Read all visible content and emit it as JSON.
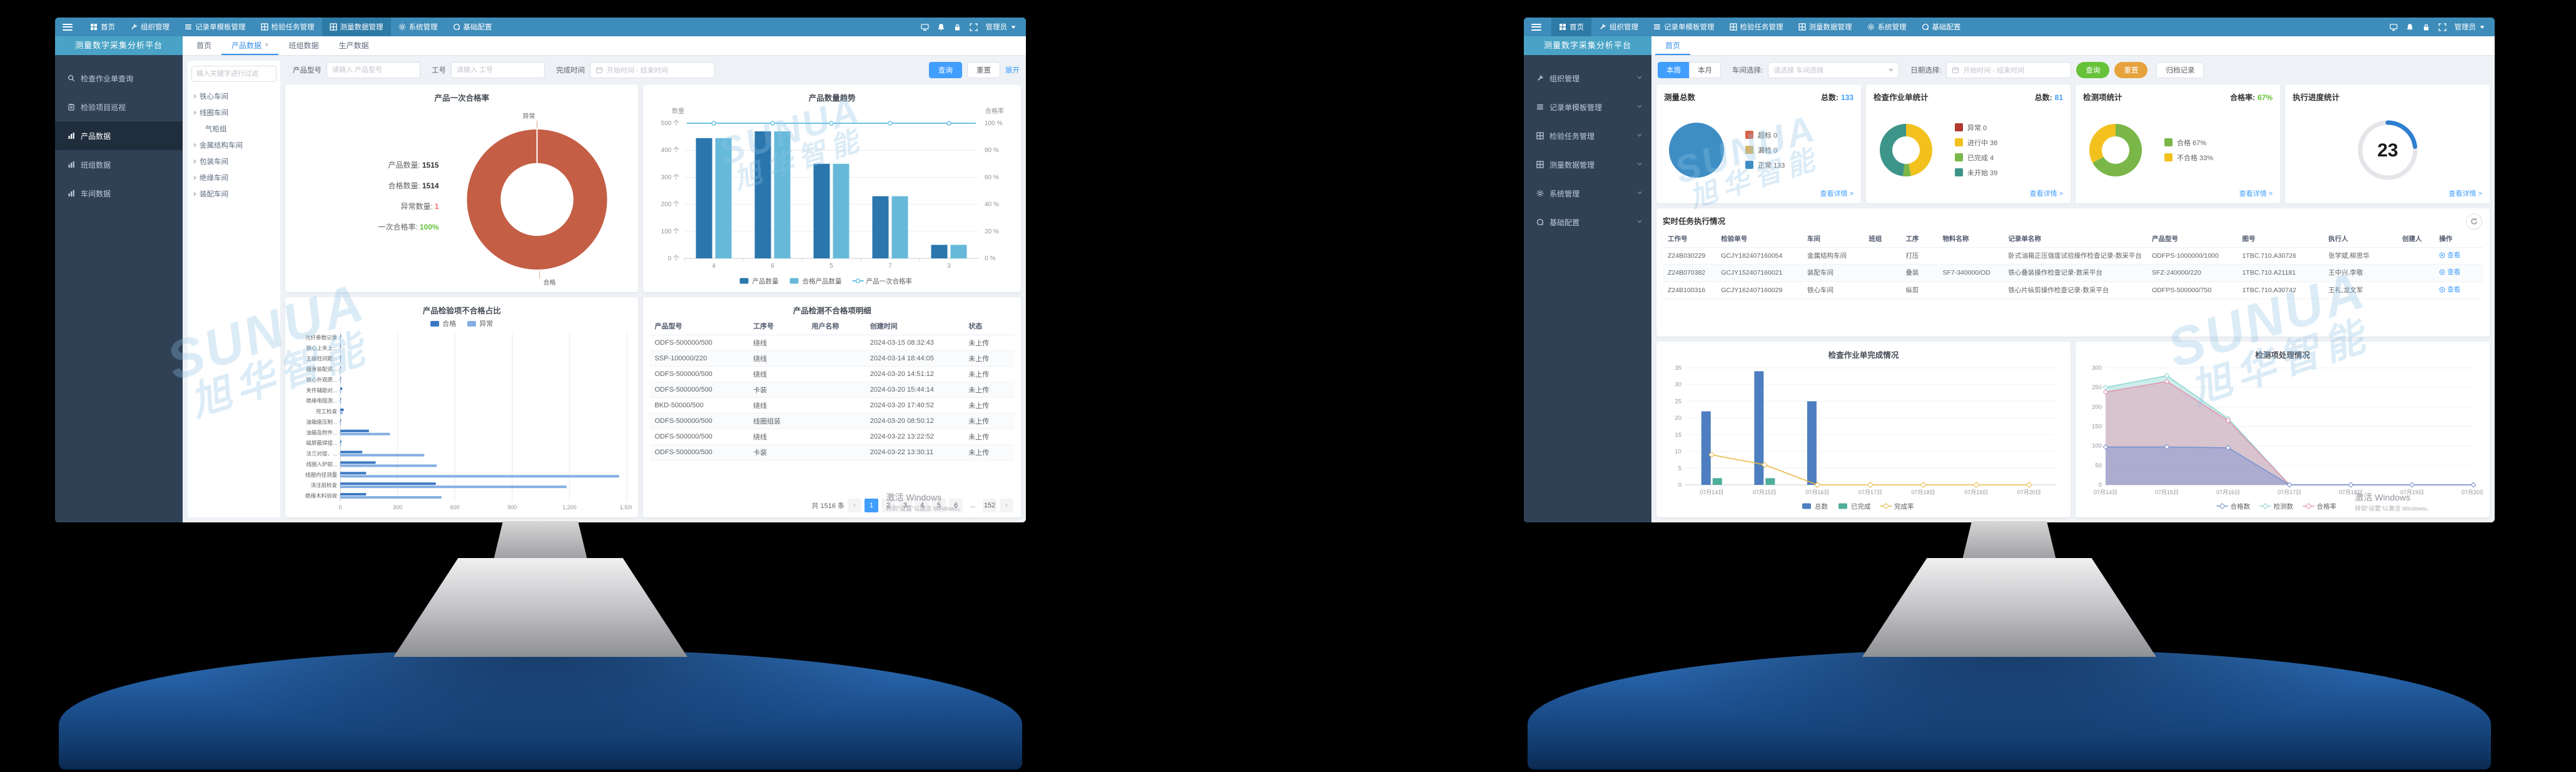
{
  "platform_title": "测量数字采集分析平台",
  "topnav": {
    "items": [
      {
        "icon": "home-icon",
        "label": "首页"
      },
      {
        "icon": "wrench-icon",
        "label": "组织管理"
      },
      {
        "icon": "list-icon",
        "label": "记录单模板管理"
      },
      {
        "icon": "grid-icon",
        "label": "检验任务管理"
      },
      {
        "icon": "grid-icon",
        "label": "测量数据管理"
      },
      {
        "icon": "gear-icon",
        "label": "系统管理"
      },
      {
        "icon": "config-icon",
        "label": "基础配置"
      }
    ],
    "right_icons": [
      "display-icon",
      "bell-icon",
      "lock-icon",
      "fullscreen-icon"
    ],
    "user": "管理员"
  },
  "watermark": {
    "brand": "SUNUA",
    "brand_cn": "旭华智能",
    "activate": "激活 Windows",
    "activate_sub": "转到“设置”以激活 Windows。"
  },
  "monitor1": {
    "nav_active": 4,
    "sidebar": [
      {
        "icon": "search-icon",
        "label": "检查作业单查询"
      },
      {
        "icon": "clipboard-icon",
        "label": "检验项目巡视"
      },
      {
        "icon": "chart-icon",
        "label": "产品数据",
        "active": true
      },
      {
        "icon": "chart-icon",
        "label": "班组数据"
      },
      {
        "icon": "chart-icon",
        "label": "车间数据"
      }
    ],
    "tabs": [
      {
        "label": "首页"
      },
      {
        "label": "产品数据",
        "active": true,
        "closable": true
      },
      {
        "label": "班组数据"
      },
      {
        "label": "生产数据"
      }
    ],
    "tree": {
      "filter_placeholder": "输入关键字进行过滤",
      "items": [
        {
          "label": "铁心车间",
          "caret": true
        },
        {
          "label": "线圈车间",
          "caret": true
        },
        {
          "label": "气柜组",
          "caret": false,
          "child": true
        },
        {
          "label": "金属结构车间",
          "caret": true
        },
        {
          "label": "包装车间",
          "caret": true
        },
        {
          "label": "绝缘车间",
          "caret": true
        },
        {
          "label": "装配车间",
          "caret": true
        }
      ]
    },
    "filters": {
      "f1_label": "产品型号",
      "f1_placeholder": "请输入 产品型号",
      "f2_label": "工号",
      "f2_placeholder": "请输入 工号",
      "f3_label": "完成时间",
      "f3_placeholder": "开始时间 - 结束时间",
      "search": "查询",
      "reset": "重置",
      "expand": "展开"
    },
    "summary": {
      "title": "产品一次合格率",
      "rows": [
        {
          "label": "产品数量:",
          "value": "1515",
          "color": "#303133"
        },
        {
          "label": "合格数量:",
          "value": "1514",
          "color": "#303133"
        },
        {
          "label": "异常数量:",
          "value": "1",
          "color": "#f56c6c"
        },
        {
          "label": "一次合格率:",
          "value": "100%",
          "color": "#67c23a"
        }
      ]
    },
    "chart_pass": {
      "type": "donut",
      "labels": [
        "异常",
        "合格"
      ],
      "values": [
        1,
        1514
      ],
      "color": "#c45e45"
    },
    "chart_trend": {
      "type": "bar+line",
      "title": "产品数量趋势",
      "y_label": "数量",
      "y2_label": "合格率",
      "categories": [
        "4",
        "6",
        "5",
        "7",
        "3"
      ],
      "series": [
        {
          "name": "产品数量",
          "color": "#2a76ad",
          "values": [
            445,
            470,
            350,
            230,
            50
          ]
        },
        {
          "name": "合格产品数量",
          "color": "#66b9d9",
          "values": [
            445,
            470,
            350,
            230,
            50
          ]
        }
      ],
      "line": {
        "name": "产品一次合格率",
        "color": "#6cc3e8",
        "values": [
          100,
          100,
          100,
          100,
          100
        ]
      },
      "ylim": [
        0,
        500
      ],
      "y2lim": [
        0,
        100
      ],
      "y_unit": " 个",
      "y2_unit": " %"
    },
    "chart_defect": {
      "type": "hbar",
      "title": "产品检验项不合格占比",
      "legend": [
        {
          "name": "合格",
          "color": "#3c79c3"
        },
        {
          "name": "异常",
          "color": "#85aee3"
        }
      ],
      "categories": [
        "光纤参数记录",
        "铁心上夹上...",
        "主级柱间距...",
        "器身装配资...",
        "铁心外观质...",
        "夹件辅助对...",
        "绝缘电阻测...",
        "完工检查",
        "油箱座压制...",
        "油箱及附件...",
        "磁屏蔽焊接...",
        "法兰对接、...",
        "线圈入炉前...",
        "线圈内径测量",
        "浇注前检查",
        "绝缘木料验收"
      ],
      "series": [
        {
          "name": "合格",
          "values": [
            1,
            2,
            2,
            2,
            3,
            10,
            3,
            18,
            4,
            150,
            6,
            115,
            185,
            135,
            500,
            135
          ]
        },
        {
          "name": "异常",
          "values": [
            0,
            0,
            1,
            0,
            1,
            3,
            1,
            12,
            2,
            260,
            2,
            440,
            505,
            1460,
            1185,
            530
          ]
        }
      ],
      "xticks": [
        0,
        300,
        600,
        900,
        1200,
        1500
      ],
      "xlim": [
        0,
        1500
      ]
    },
    "table": {
      "title": "产品检测不合格项明细",
      "columns": [
        "产品型号",
        "工序号",
        "用户名称",
        "创建时间",
        "状态"
      ],
      "rows": [
        [
          "ODFS-500000/500",
          "绕线",
          "",
          "2024-03-15 08:32:43",
          "未上传"
        ],
        [
          "SSP-100000/220",
          "绕线",
          "",
          "2024-03-14 18:44:05",
          "未上传"
        ],
        [
          "ODFS-500000/500",
          "绕线",
          "",
          "2024-03-20 14:51:12",
          "未上传"
        ],
        [
          "ODFS-500000/500",
          "卡装",
          "",
          "2024-03-20 15:44:14",
          "未上传"
        ],
        [
          "BKD-50000/500",
          "绕线",
          "",
          "2024-03-20 17:40:52",
          "未上传"
        ],
        [
          "ODFS-500000/500",
          "线圈组装",
          "",
          "2024-03-20 08:50:12",
          "未上传"
        ],
        [
          "ODFS-500000/500",
          "绕线",
          "",
          "2024-03-22 13:22:52",
          "未上传"
        ],
        [
          "ODFS-500000/500",
          "卡装",
          "",
          "2024-03-22 13:30:11",
          "未上传"
        ]
      ],
      "pagination": {
        "total": "共 1516 条",
        "pages": [
          "1",
          "2",
          "3",
          "4",
          "5",
          "6",
          "...",
          "152"
        ],
        "active": "1",
        "prev": "‹",
        "next": "›"
      }
    }
  },
  "monitor2": {
    "nav_active": 0,
    "sidebar": [
      {
        "icon": "wrench-icon",
        "label": "组织管理"
      },
      {
        "icon": "list-icon",
        "label": "记录单模板管理"
      },
      {
        "icon": "grid-icon",
        "label": "检验任务管理"
      },
      {
        "icon": "grid-icon",
        "label": "测量数据管理"
      },
      {
        "icon": "gear-icon",
        "label": "系统管理"
      },
      {
        "icon": "config-icon",
        "label": "基础配置"
      }
    ],
    "tabs": [
      {
        "label": "首页",
        "active": true
      }
    ],
    "filters": {
      "period": [
        {
          "label": "本周",
          "active": true
        },
        {
          "label": "本月"
        }
      ],
      "workshop_label": "车间选择:",
      "workshop_placeholder": "请选择 车间选择",
      "date_label": "日期选择:",
      "date_placeholder": "开始时间 - 结束时间",
      "search": "查询",
      "reset": "重置",
      "archive": "归档记录"
    },
    "cards": [
      {
        "title": "测量总数",
        "badge_label": "总数:",
        "badge_value": "133",
        "badge_color": "#409eff",
        "chart": {
          "type": "pie",
          "segments": [
            {
              "label": "超标",
              "value": 0,
              "color": "#d9644a"
            },
            {
              "label": "漏检",
              "value": 0,
              "color": "#d4b469"
            },
            {
              "label": "正常",
              "value": 133,
              "color": "#3e8ec4"
            }
          ]
        },
        "link": "查看详情 >"
      },
      {
        "title": "检查作业单统计",
        "badge_label": "总数:",
        "badge_value": "81",
        "badge_color": "#409eff",
        "chart": {
          "type": "donut",
          "segments": [
            {
              "label": "异常",
              "value": 0,
              "color": "#b03a2e"
            },
            {
              "label": "进行中",
              "value": 38,
              "color": "#f2c11e"
            },
            {
              "label": "已完成",
              "value": 4,
              "color": "#7ab648"
            },
            {
              "label": "未开始",
              "value": 39,
              "color": "#3d9488"
            }
          ]
        },
        "link": "查看详情 >"
      },
      {
        "title": "检测项统计",
        "badge_label": "合格率:",
        "badge_value": "67%",
        "badge_color": "#67c23a",
        "chart": {
          "type": "donut",
          "segments": [
            {
              "label": "合格",
              "value": 67,
              "suffix": "%",
              "color": "#7ab648"
            },
            {
              "label": "不合格",
              "value": 33,
              "suffix": "%",
              "color": "#f2c11e"
            }
          ]
        },
        "link": "查看详情 >"
      },
      {
        "title": "执行进度统计",
        "chart": {
          "type": "gauge",
          "value": 23,
          "max": 100,
          "color": "#2f7fd0"
        },
        "link": "查看详情 >"
      }
    ],
    "task_table": {
      "title": "实时任务执行情况",
      "columns": [
        "工作号",
        "检验单号",
        "车间",
        "班组",
        "工序",
        "物料名称",
        "记录单名称",
        "产品型号",
        "图号",
        "执行人",
        "创建人",
        "操作"
      ],
      "op_label": "查看",
      "rows": [
        [
          "Z24B030229",
          "GCJY182407160054",
          "金属结构车间",
          "",
          "打压",
          "",
          "卧式油箱正压强度试验操作检查记录-数采平台",
          "ODFPS-1000000/1000",
          "1TBC.710.A30726",
          "张学斌,柳思华",
          "",
          "查看"
        ],
        [
          "Z24B070382",
          "GCJY152407160021",
          "装配车间",
          "",
          "叠装",
          "SF7-340000/OD",
          "铁心叠装操作检查记录-数采平台",
          "SFZ-240000/220",
          "1TBC.710.A21181",
          "王中兴,李敬",
          "",
          "查看"
        ],
        [
          "Z24B100316",
          "GCJY162407160029",
          "铁心车间",
          "",
          "纵剪",
          "",
          "铁心片纵剪操作检查记录-数采平台",
          "ODFPS-500000/750",
          "1TBC.710.A30742",
          "王礼,龙文军",
          "",
          "查看"
        ]
      ]
    },
    "chart_jobs": {
      "type": "bar+line",
      "title": "检查作业单完成情况",
      "categories": [
        "07月14日",
        "07月15日",
        "07月16日",
        "07月17日",
        "07月18日",
        "07月19日",
        "07月20日"
      ],
      "series": [
        {
          "name": "总数",
          "color": "#4d7ebf",
          "values": [
            22,
            34,
            25,
            0,
            0,
            0,
            0
          ]
        },
        {
          "name": "已完成",
          "color": "#4fae9c",
          "values": [
            2,
            2,
            0,
            0,
            0,
            0,
            0
          ]
        }
      ],
      "line": {
        "name": "完成率",
        "color": "#e9b949",
        "values": [
          9,
          6,
          0,
          0,
          0,
          0,
          0
        ]
      },
      "ylim": [
        0,
        35
      ],
      "yticks": [
        0,
        5,
        10,
        15,
        20,
        25,
        30,
        35
      ]
    },
    "chart_items": {
      "type": "area",
      "title": "检测项处理情况",
      "categories": [
        "07月14日",
        "07月15日",
        "07月16日",
        "07月17日",
        "07月18日",
        "07月19日",
        "07月20日"
      ],
      "series": [
        {
          "name": "合格数",
          "color": "#7591d0",
          "values": [
            97,
            97,
            95,
            0,
            0,
            0,
            0
          ]
        },
        {
          "name": "检测数",
          "color": "#8fd6d2",
          "values": [
            250,
            280,
            170,
            0,
            0,
            0,
            0
          ]
        },
        {
          "name": "合格率",
          "color": "#e592ae",
          "values": [
            238,
            265,
            165,
            0,
            0,
            0,
            0
          ]
        }
      ],
      "ylim": [
        0,
        300
      ],
      "yticks": [
        0,
        50,
        100,
        150,
        200,
        250,
        300
      ]
    }
  }
}
